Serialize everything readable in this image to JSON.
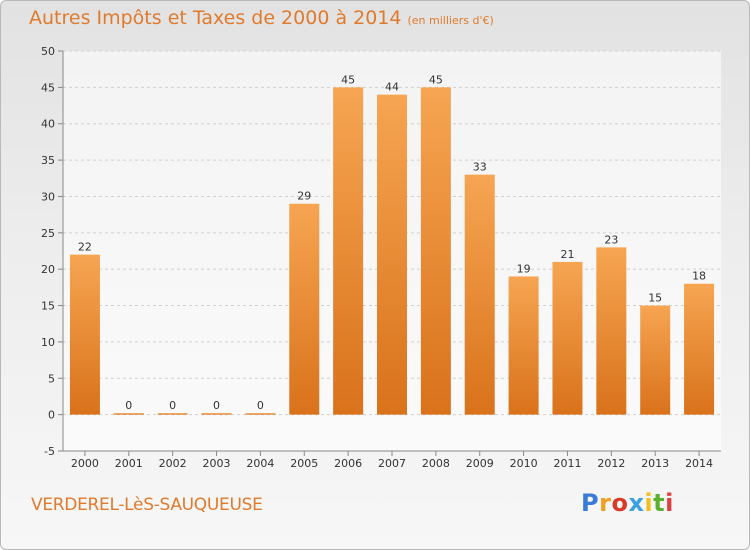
{
  "title": {
    "main": "Autres Impôts et Taxes de 2000 à 2014",
    "unit": "(en milliers d'€)"
  },
  "commune": "VERDEREL-LèS-SAUQUEUSE",
  "logo": {
    "letters": [
      "P",
      "r",
      "o",
      "x",
      "i",
      "t",
      "i"
    ],
    "colors": [
      "#3a7bd5",
      "#f0a020",
      "#d93a2a",
      "#3aa0e0",
      "#f0c020",
      "#5cb030",
      "#e04040"
    ]
  },
  "colors": {
    "bar_top": "#f6a552",
    "bar_bottom": "#d9721b",
    "grid": "#d0d0d0",
    "axis": "#888888",
    "accent": "#e07a2c"
  },
  "chart_data": {
    "type": "bar",
    "categories": [
      "2000",
      "2001",
      "2002",
      "2003",
      "2004",
      "2005",
      "2006",
      "2007",
      "2008",
      "2009",
      "2010",
      "2011",
      "2012",
      "2013",
      "2014"
    ],
    "values": [
      22,
      0,
      0,
      0,
      0,
      29,
      45,
      44,
      45,
      33,
      19,
      21,
      23,
      15,
      18
    ],
    "ylim": [
      -5,
      50
    ],
    "yticks": [
      -5,
      0,
      5,
      10,
      15,
      20,
      25,
      30,
      35,
      40,
      45,
      50
    ],
    "grid": true,
    "legend": "none"
  }
}
